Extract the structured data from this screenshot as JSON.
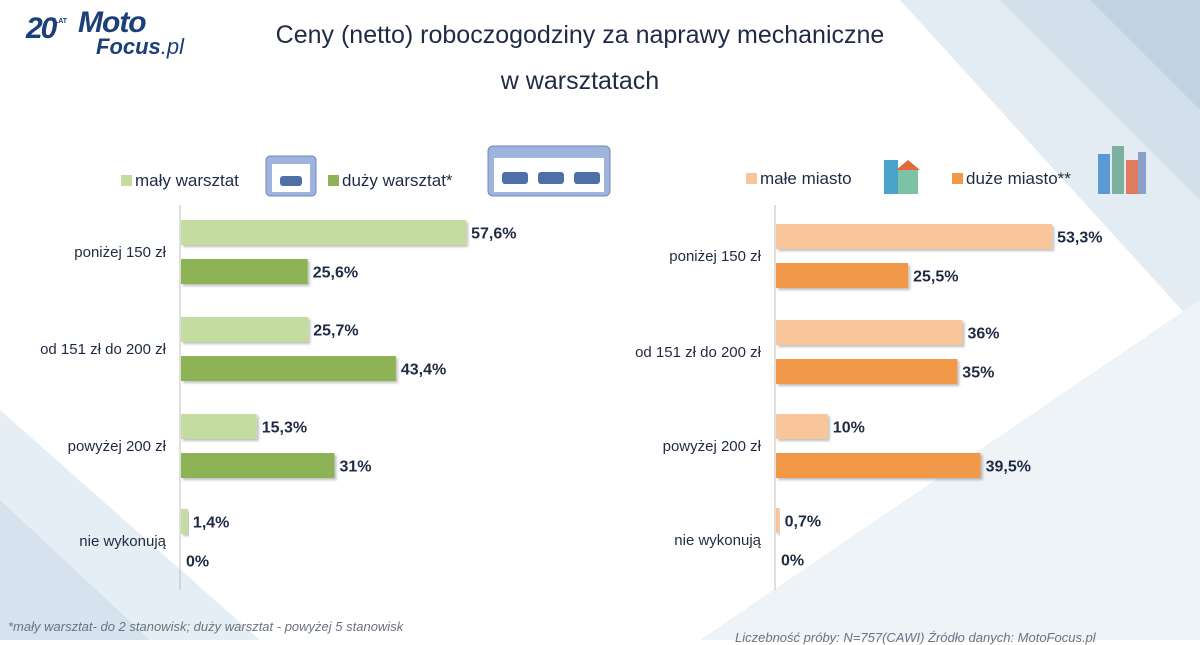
{
  "title": {
    "line1": "Ceny (netto) roboczogodziny za naprawy mechaniczne",
    "line2": "w warsztatach"
  },
  "logo": {
    "badge": "20",
    "badge_small": "LAT",
    "brand_top": "Moto",
    "brand_bottom": "Focus",
    "brand_suffix": ".pl"
  },
  "colors": {
    "light_green": "#c5dca0",
    "dark_green": "#8db356",
    "light_orange": "#f9c59b",
    "dark_orange": "#f2994a",
    "axis": "#bfbfbf"
  },
  "chart_data": [
    {
      "type": "bar",
      "orientation": "horizontal",
      "categories": [
        "poniżej 150 zł",
        "od 151 zł do 200 zł",
        "powyżej 200 zł",
        "nie wykonują"
      ],
      "series": [
        {
          "name": "mały warsztat",
          "values": [
            57.6,
            25.7,
            15.3,
            1.4
          ],
          "labels": [
            "57,6%",
            "25,7%",
            "15,3%",
            "1,4%"
          ],
          "color": "#c5dca0",
          "icon": "small-garage-icon"
        },
        {
          "name": "duży warsztat*",
          "values": [
            25.6,
            43.4,
            31,
            0
          ],
          "labels": [
            "25,6%",
            "43,4%",
            "31%",
            "0%"
          ],
          "color": "#8db356",
          "icon": "large-garage-icon"
        }
      ],
      "legend": "top",
      "grid": false
    },
    {
      "type": "bar",
      "orientation": "horizontal",
      "categories": [
        "poniżej 150 zł",
        "od 151 zł do 200 zł",
        "powyżej 200 zł",
        "nie wykonują"
      ],
      "series": [
        {
          "name": "małe miasto",
          "values": [
            53.3,
            36,
            10,
            0.7
          ],
          "labels": [
            "53,3%",
            "36%",
            "10%",
            "0,7%"
          ],
          "color": "#f9c59b",
          "icon": "small-town-icon"
        },
        {
          "name": "duże miasto**",
          "values": [
            25.5,
            35,
            39.5,
            0
          ],
          "labels": [
            "25,5%",
            "35%",
            "39,5%",
            "0%"
          ],
          "color": "#f2994a",
          "icon": "big-city-icon"
        }
      ],
      "legend": "top",
      "grid": false
    }
  ],
  "footnote": "*mały warsztat- do 2 stanowisk; duży warsztat  - powyżej  5 stanowisk",
  "source": "Liczebność próby: N=757(CAWI)    Źródło danych: MotoFocus.pl"
}
